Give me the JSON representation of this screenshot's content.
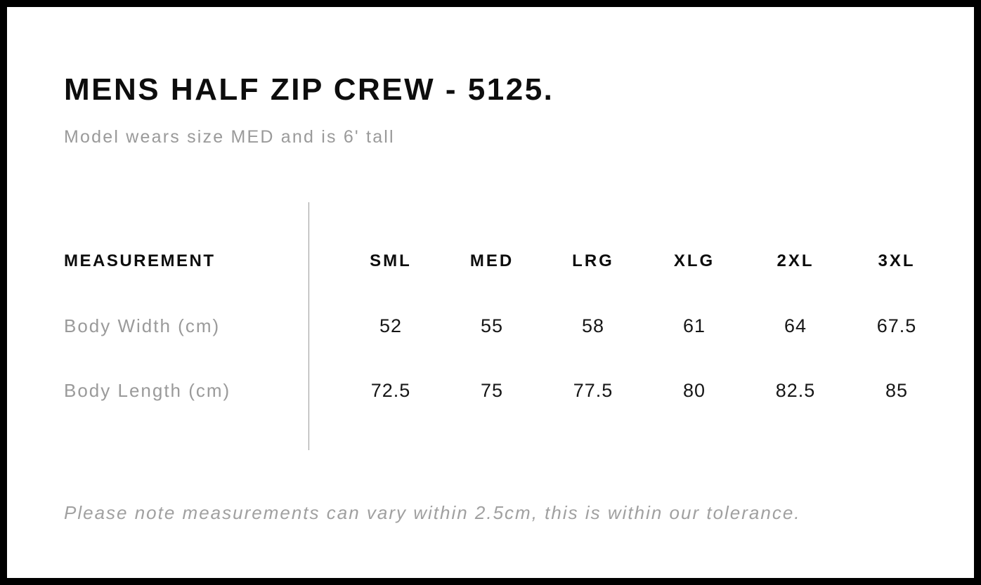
{
  "page": {
    "title": "MENS HALF ZIP CREW - 5125.",
    "subtitle": "Model wears size MED and is 6' tall",
    "tolerance_note": "Please note measurements can vary within 2.5cm, this is within our tolerance."
  },
  "size_chart": {
    "measurement_header": "MEASUREMENT",
    "size_headers": [
      "SML",
      "MED",
      "LRG",
      "XLG",
      "2XL",
      "3XL"
    ],
    "rows": [
      {
        "label": "Body Width (cm)",
        "values": [
          "52",
          "55",
          "58",
          "61",
          "64",
          "67.5"
        ]
      },
      {
        "label": "Body Length (cm)",
        "values": [
          "72.5",
          "75",
          "77.5",
          "80",
          "82.5",
          "85"
        ]
      }
    ]
  },
  "colors": {
    "page_border": "#000000",
    "background": "#ffffff",
    "heading_text": "#0d0d0d",
    "value_text": "#161616",
    "muted_text": "#9a9a9a",
    "note_text": "#a0a0a0",
    "divider": "#9a9a9a"
  }
}
